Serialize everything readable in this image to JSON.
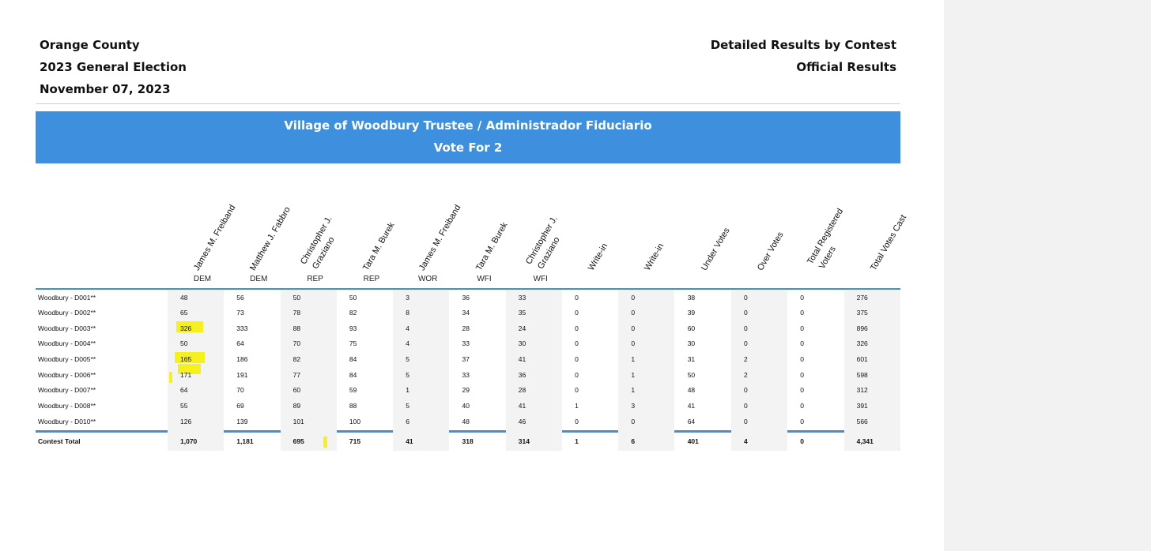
{
  "header": {
    "county": "Orange County",
    "election": "2023 General Election",
    "date": "November 07, 2023",
    "report_type": "Detailed Results by Contest",
    "status": "Official Results"
  },
  "contest": {
    "title": "Village of Woodbury Trustee / Administrador Fiduciario",
    "vote_for": "Vote For 2"
  },
  "columns": [
    {
      "line1": "James M. Freiband",
      "line2": "",
      "party": "DEM"
    },
    {
      "line1": "Matthew J. Fabbro",
      "line2": "",
      "party": "DEM"
    },
    {
      "line1": "Christopher J.",
      "line2": "Graziano",
      "party": "REP"
    },
    {
      "line1": "Tara M. Burek",
      "line2": "",
      "party": "REP"
    },
    {
      "line1": "James M. Freiband",
      "line2": "",
      "party": "WOR"
    },
    {
      "line1": "Tara M. Burek",
      "line2": "",
      "party": "WFI"
    },
    {
      "line1": "Christopher J.",
      "line2": "Graziano",
      "party": "WFI"
    },
    {
      "line1": "Write-in",
      "line2": "",
      "party": ""
    },
    {
      "line1": "Write-in",
      "line2": "",
      "party": ""
    },
    {
      "line1": "Under Votes",
      "line2": "",
      "party": ""
    },
    {
      "line1": "Over Votes",
      "line2": "",
      "party": ""
    },
    {
      "line1": "Total Registered",
      "line2": "Voters",
      "party": ""
    },
    {
      "line1": "Total Votes Cast",
      "line2": "",
      "party": ""
    }
  ],
  "rows": [
    {
      "label": "Woodbury - D001**",
      "values": [
        "48",
        "56",
        "50",
        "50",
        "3",
        "36",
        "33",
        "0",
        "0",
        "38",
        "0",
        "0",
        "276"
      ]
    },
    {
      "label": "Woodbury - D002**",
      "values": [
        "65",
        "73",
        "78",
        "82",
        "8",
        "34",
        "35",
        "0",
        "0",
        "39",
        "0",
        "0",
        "375"
      ]
    },
    {
      "label": "Woodbury - D003**",
      "values": [
        "326",
        "333",
        "88",
        "93",
        "4",
        "28",
        "24",
        "0",
        "0",
        "60",
        "0",
        "0",
        "896"
      ]
    },
    {
      "label": "Woodbury - D004**",
      "values": [
        "50",
        "64",
        "70",
        "75",
        "4",
        "33",
        "30",
        "0",
        "0",
        "30",
        "0",
        "0",
        "326"
      ]
    },
    {
      "label": "Woodbury - D005**",
      "values": [
        "165",
        "186",
        "82",
        "84",
        "5",
        "37",
        "41",
        "0",
        "1",
        "31",
        "2",
        "0",
        "601"
      ]
    },
    {
      "label": "Woodbury - D006**",
      "values": [
        "171",
        "191",
        "77",
        "84",
        "5",
        "33",
        "36",
        "0",
        "1",
        "50",
        "2",
        "0",
        "598"
      ]
    },
    {
      "label": "Woodbury - D007**",
      "values": [
        "64",
        "70",
        "60",
        "59",
        "1",
        "29",
        "28",
        "0",
        "1",
        "48",
        "0",
        "0",
        "312"
      ]
    },
    {
      "label": "Woodbury - D008**",
      "values": [
        "55",
        "69",
        "89",
        "88",
        "5",
        "40",
        "41",
        "1",
        "3",
        "41",
        "0",
        "0",
        "391"
      ]
    },
    {
      "label": "Woodbury - D010**",
      "values": [
        "126",
        "139",
        "101",
        "100",
        "6",
        "48",
        "46",
        "0",
        "0",
        "64",
        "0",
        "0",
        "566"
      ]
    }
  ],
  "totals": {
    "label": "Contest Total",
    "values": [
      "1,070",
      "1,181",
      "695",
      "715",
      "41",
      "318",
      "314",
      "1",
      "6",
      "401",
      "4",
      "0",
      "4,341"
    ]
  },
  "colors": {
    "banner": "#3f8fdf",
    "highlight": "#f6f01c",
    "column_shade": "#f3f3f3"
  }
}
